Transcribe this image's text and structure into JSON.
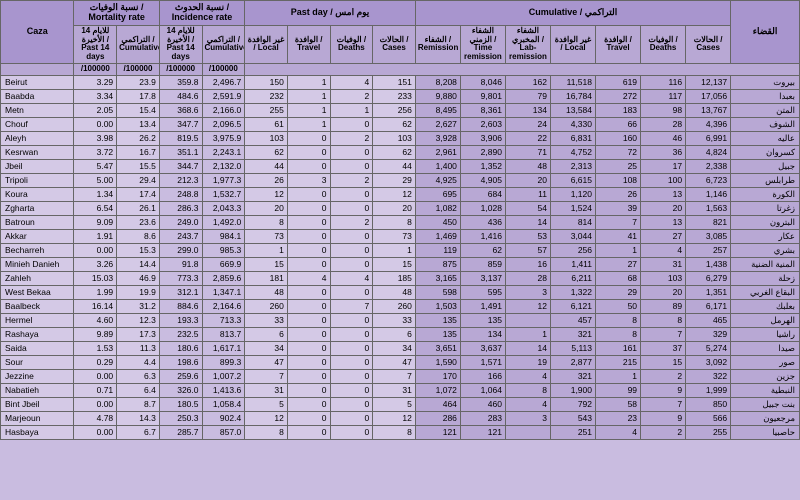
{
  "headers": {
    "caza": "Caza",
    "mortality_group": "نسبة الوفيات / Mortality rate",
    "incidence_group": "نسبة الحدوث / Incidence rate",
    "pastday_group": "Past day / يوم امس",
    "cumulative_group": "Cumulative / التراكمي",
    "qada": "القضاء",
    "past14": "للايام 14 الأخيرة / Past 14 days",
    "cumulative": "التراكمي / Cumulative",
    "local": "غير الوافدة / Local",
    "travel": "الوافدة / Travel",
    "deaths": "الوفيات / Deaths",
    "cases": "الحالات / Cases",
    "remission": "الشفاء / Remission",
    "time_remission": "الشفاء الزمني / Time remission",
    "lab_remission": "الشفاء المخبري / Lab-remission",
    "per100k": "/100000"
  },
  "rows": [
    {
      "caza": "Beirut",
      "m14": "3.29",
      "mcum": "23.9",
      "i14": "359.8",
      "icum": "2,496.7",
      "pl": "150",
      "pt": "1",
      "pd": "4",
      "pc": "151",
      "crem": "8,208",
      "ctrem": "8,046",
      "clrem": "162",
      "cloc": "11,518",
      "ctrav": "619",
      "cdeath": "116",
      "ccases": "12,137",
      "ar": "بيروت"
    },
    {
      "caza": "Baabda",
      "m14": "3.34",
      "mcum": "17.8",
      "i14": "484.6",
      "icum": "2,591.9",
      "pl": "232",
      "pt": "1",
      "pd": "2",
      "pc": "233",
      "crem": "9,880",
      "ctrem": "9,801",
      "clrem": "79",
      "cloc": "16,784",
      "ctrav": "272",
      "cdeath": "117",
      "ccases": "17,056",
      "ar": "بعبدا"
    },
    {
      "caza": "Metn",
      "m14": "2.05",
      "mcum": "15.4",
      "i14": "368.6",
      "icum": "2,166.0",
      "pl": "255",
      "pt": "1",
      "pd": "1",
      "pc": "256",
      "crem": "8,495",
      "ctrem": "8,361",
      "clrem": "134",
      "cloc": "13,584",
      "ctrav": "183",
      "cdeath": "98",
      "ccases": "13,767",
      "ar": "المتن"
    },
    {
      "caza": "Chouf",
      "m14": "0.00",
      "mcum": "13.4",
      "i14": "347.7",
      "icum": "2,096.5",
      "pl": "61",
      "pt": "1",
      "pd": "0",
      "pc": "62",
      "crem": "2,627",
      "ctrem": "2,603",
      "clrem": "24",
      "cloc": "4,330",
      "ctrav": "66",
      "cdeath": "28",
      "ccases": "4,396",
      "ar": "الشوف"
    },
    {
      "caza": "Aleyh",
      "m14": "3.98",
      "mcum": "26.2",
      "i14": "819.5",
      "icum": "3,975.9",
      "pl": "103",
      "pt": "0",
      "pd": "2",
      "pc": "103",
      "crem": "3,928",
      "ctrem": "3,906",
      "clrem": "22",
      "cloc": "6,831",
      "ctrav": "160",
      "cdeath": "46",
      "ccases": "6,991",
      "ar": "عاليه"
    },
    {
      "caza": "Kesrwan",
      "m14": "3.72",
      "mcum": "16.7",
      "i14": "351.1",
      "icum": "2,243.1",
      "pl": "62",
      "pt": "0",
      "pd": "0",
      "pc": "62",
      "crem": "2,961",
      "ctrem": "2,890",
      "clrem": "71",
      "cloc": "4,752",
      "ctrav": "72",
      "cdeath": "36",
      "ccases": "4,824",
      "ar": "كسروان"
    },
    {
      "caza": "Jbeil",
      "m14": "5.47",
      "mcum": "15.5",
      "i14": "344.7",
      "icum": "2,132.0",
      "pl": "44",
      "pt": "0",
      "pd": "0",
      "pc": "44",
      "crem": "1,400",
      "ctrem": "1,352",
      "clrem": "48",
      "cloc": "2,313",
      "ctrav": "25",
      "cdeath": "17",
      "ccases": "2,338",
      "ar": "جبيل"
    },
    {
      "caza": "Tripoli",
      "m14": "5.00",
      "mcum": "29.4",
      "i14": "212.3",
      "icum": "1,977.3",
      "pl": "26",
      "pt": "3",
      "pd": "2",
      "pc": "29",
      "crem": "4,925",
      "ctrem": "4,905",
      "clrem": "20",
      "cloc": "6,615",
      "ctrav": "108",
      "cdeath": "100",
      "ccases": "6,723",
      "ar": "طرابلس"
    },
    {
      "caza": "Koura",
      "m14": "1.34",
      "mcum": "17.4",
      "i14": "248.8",
      "icum": "1,532.7",
      "pl": "12",
      "pt": "0",
      "pd": "0",
      "pc": "12",
      "crem": "695",
      "ctrem": "684",
      "clrem": "11",
      "cloc": "1,120",
      "ctrav": "26",
      "cdeath": "13",
      "ccases": "1,146",
      "ar": "الكورة"
    },
    {
      "caza": "Zgharta",
      "m14": "6.54",
      "mcum": "26.1",
      "i14": "286.3",
      "icum": "2,043.3",
      "pl": "20",
      "pt": "0",
      "pd": "0",
      "pc": "20",
      "crem": "1,082",
      "ctrem": "1,028",
      "clrem": "54",
      "cloc": "1,524",
      "ctrav": "39",
      "cdeath": "20",
      "ccases": "1,563",
      "ar": "زغرتا"
    },
    {
      "caza": "Batroun",
      "m14": "9.09",
      "mcum": "23.6",
      "i14": "249.0",
      "icum": "1,492.0",
      "pl": "8",
      "pt": "0",
      "pd": "2",
      "pc": "8",
      "crem": "450",
      "ctrem": "436",
      "clrem": "14",
      "cloc": "814",
      "ctrav": "7",
      "cdeath": "13",
      "ccases": "821",
      "ar": "البترون"
    },
    {
      "caza": "Akkar",
      "m14": "1.91",
      "mcum": "8.6",
      "i14": "243.7",
      "icum": "984.1",
      "pl": "73",
      "pt": "0",
      "pd": "0",
      "pc": "73",
      "crem": "1,469",
      "ctrem": "1,416",
      "clrem": "53",
      "cloc": "3,044",
      "ctrav": "41",
      "cdeath": "27",
      "ccases": "3,085",
      "ar": "عكار"
    },
    {
      "caza": "Becharreh",
      "m14": "0.00",
      "mcum": "15.3",
      "i14": "299.0",
      "icum": "985.3",
      "pl": "1",
      "pt": "0",
      "pd": "0",
      "pc": "1",
      "crem": "119",
      "ctrem": "62",
      "clrem": "57",
      "cloc": "256",
      "ctrav": "1",
      "cdeath": "4",
      "ccases": "257",
      "ar": "بشري"
    },
    {
      "caza": "Minieh Danieh",
      "m14": "3.26",
      "mcum": "14.4",
      "i14": "91.8",
      "icum": "669.9",
      "pl": "15",
      "pt": "0",
      "pd": "0",
      "pc": "15",
      "crem": "875",
      "ctrem": "859",
      "clrem": "16",
      "cloc": "1,411",
      "ctrav": "27",
      "cdeath": "31",
      "ccases": "1,438",
      "ar": "المنية الضنية"
    },
    {
      "caza": "Zahleh",
      "m14": "15.03",
      "mcum": "46.9",
      "i14": "773.3",
      "icum": "2,859.6",
      "pl": "181",
      "pt": "4",
      "pd": "4",
      "pc": "185",
      "crem": "3,165",
      "ctrem": "3,137",
      "clrem": "28",
      "cloc": "6,211",
      "ctrav": "68",
      "cdeath": "103",
      "ccases": "6,279",
      "ar": "زحلة"
    },
    {
      "caza": "West Bekaa",
      "m14": "1.99",
      "mcum": "19.9",
      "i14": "312.1",
      "icum": "1,347.1",
      "pl": "48",
      "pt": "0",
      "pd": "0",
      "pc": "48",
      "crem": "598",
      "ctrem": "595",
      "clrem": "3",
      "cloc": "1,322",
      "ctrav": "29",
      "cdeath": "20",
      "ccases": "1,351",
      "ar": "البقاع الغربي"
    },
    {
      "caza": "Baalbeck",
      "m14": "16.14",
      "mcum": "31.2",
      "i14": "884.6",
      "icum": "2,164.6",
      "pl": "260",
      "pt": "0",
      "pd": "7",
      "pc": "260",
      "crem": "1,503",
      "ctrem": "1,491",
      "clrem": "12",
      "cloc": "6,121",
      "ctrav": "50",
      "cdeath": "89",
      "ccases": "6,171",
      "ar": "بعلبك"
    },
    {
      "caza": "Hermel",
      "m14": "4.60",
      "mcum": "12.3",
      "i14": "193.3",
      "icum": "713.3",
      "pl": "33",
      "pt": "0",
      "pd": "0",
      "pc": "33",
      "crem": "135",
      "ctrem": "135",
      "clrem": "",
      "cloc": "457",
      "ctrav": "8",
      "cdeath": "8",
      "ccases": "465",
      "ar": "الهرمل"
    },
    {
      "caza": "Rashaya",
      "m14": "9.89",
      "mcum": "17.3",
      "i14": "232.5",
      "icum": "813.7",
      "pl": "6",
      "pt": "0",
      "pd": "0",
      "pc": "6",
      "crem": "135",
      "ctrem": "134",
      "clrem": "1",
      "cloc": "321",
      "ctrav": "8",
      "cdeath": "7",
      "ccases": "329",
      "ar": "راشيا"
    },
    {
      "caza": "Saida",
      "m14": "1.53",
      "mcum": "11.3",
      "i14": "180.6",
      "icum": "1,617.1",
      "pl": "34",
      "pt": "0",
      "pd": "0",
      "pc": "34",
      "crem": "3,651",
      "ctrem": "3,637",
      "clrem": "14",
      "cloc": "5,113",
      "ctrav": "161",
      "cdeath": "37",
      "ccases": "5,274",
      "ar": "صيدا"
    },
    {
      "caza": "Sour",
      "m14": "0.29",
      "mcum": "4.4",
      "i14": "198.6",
      "icum": "899.3",
      "pl": "47",
      "pt": "0",
      "pd": "0",
      "pc": "47",
      "crem": "1,590",
      "ctrem": "1,571",
      "clrem": "19",
      "cloc": "2,877",
      "ctrav": "215",
      "cdeath": "15",
      "ccases": "3,092",
      "ar": "صور"
    },
    {
      "caza": "Jezzine",
      "m14": "0.00",
      "mcum": "6.3",
      "i14": "259.6",
      "icum": "1,007.2",
      "pl": "7",
      "pt": "0",
      "pd": "0",
      "pc": "7",
      "crem": "170",
      "ctrem": "166",
      "clrem": "4",
      "cloc": "321",
      "ctrav": "1",
      "cdeath": "2",
      "ccases": "322",
      "ar": "جزين"
    },
    {
      "caza": "Nabatieh",
      "m14": "0.71",
      "mcum": "6.4",
      "i14": "326.0",
      "icum": "1,413.6",
      "pl": "31",
      "pt": "0",
      "pd": "0",
      "pc": "31",
      "crem": "1,072",
      "ctrem": "1,064",
      "clrem": "8",
      "cloc": "1,900",
      "ctrav": "99",
      "cdeath": "9",
      "ccases": "1,999",
      "ar": "النبطية"
    },
    {
      "caza": "Bint Jbeil",
      "m14": "0.00",
      "mcum": "8.7",
      "i14": "180.5",
      "icum": "1,058.4",
      "pl": "5",
      "pt": "0",
      "pd": "0",
      "pc": "5",
      "crem": "464",
      "ctrem": "460",
      "clrem": "4",
      "cloc": "792",
      "ctrav": "58",
      "cdeath": "7",
      "ccases": "850",
      "ar": "بنت جبيل"
    },
    {
      "caza": "Marjeoun",
      "m14": "4.78",
      "mcum": "14.3",
      "i14": "250.3",
      "icum": "902.4",
      "pl": "12",
      "pt": "0",
      "pd": "0",
      "pc": "12",
      "crem": "286",
      "ctrem": "283",
      "clrem": "3",
      "cloc": "543",
      "ctrav": "23",
      "cdeath": "9",
      "ccases": "566",
      "ar": "مرجعيون"
    },
    {
      "caza": "Hasbaya",
      "m14": "0.00",
      "mcum": "6.7",
      "i14": "285.7",
      "icum": "857.0",
      "pl": "8",
      "pt": "0",
      "pd": "0",
      "pc": "8",
      "crem": "121",
      "ctrem": "121",
      "clrem": "",
      "cloc": "251",
      "ctrav": "4",
      "cdeath": "2",
      "ccases": "255",
      "ar": "حاصبيا"
    }
  ],
  "colors": {
    "header_bg": "#a895ce",
    "subheader_bg": "#b8a8d4",
    "cell_bg": "#d4c9e6",
    "cumul_bg": "#b8a8d4",
    "incidence_bg": "#c9bce0",
    "border": "#666666"
  }
}
